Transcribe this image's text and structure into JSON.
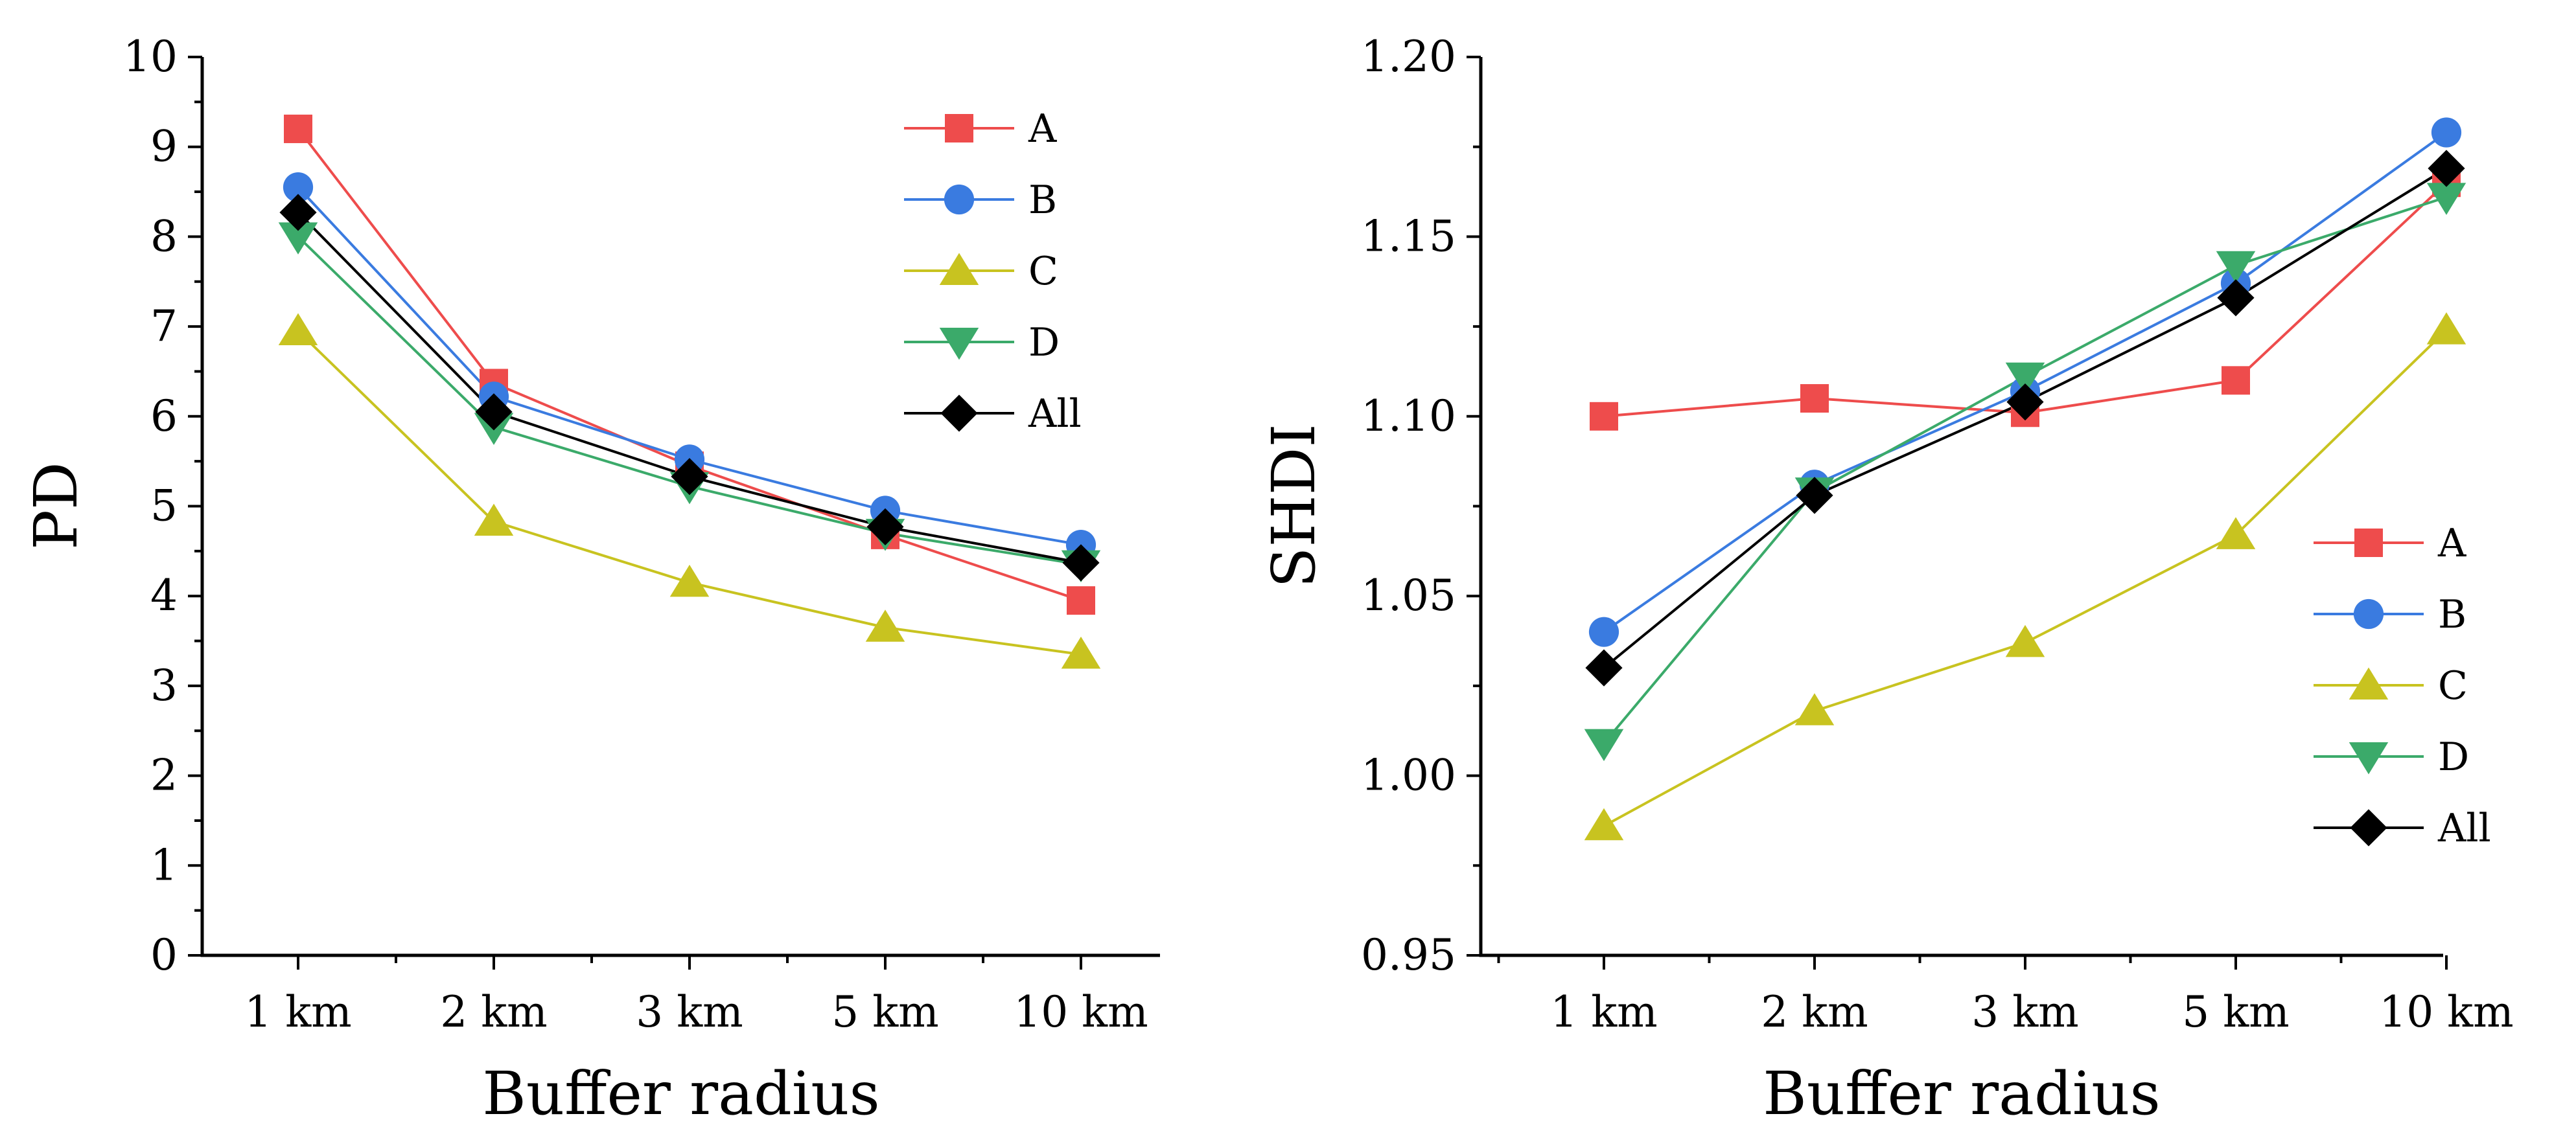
{
  "chart_data": [
    {
      "type": "line",
      "id": "pd",
      "title": "",
      "xlabel": "Buffer radius",
      "ylabel": "PD",
      "categories": [
        "1 km",
        "2 km",
        "3 km",
        "5 km",
        "10 km"
      ],
      "ylim": [
        0,
        10
      ],
      "yticks": [
        0,
        1,
        2,
        3,
        4,
        5,
        6,
        7,
        8,
        9,
        10
      ],
      "ytick_labels": [
        "0",
        "1",
        "2",
        "3",
        "4",
        "5",
        "6",
        "7",
        "8",
        "9",
        "10"
      ],
      "grid": false,
      "legend_position": "top-right",
      "series": [
        {
          "name": "A",
          "color": "#EE4C4C",
          "marker": "square",
          "values": [
            9.2,
            6.37,
            5.45,
            4.68,
            3.95
          ]
        },
        {
          "name": "B",
          "color": "#3A7BE0",
          "marker": "circle",
          "values": [
            8.55,
            6.22,
            5.52,
            4.95,
            4.57
          ]
        },
        {
          "name": "C",
          "color": "#C8C320",
          "marker": "triangle-up",
          "values": [
            6.95,
            4.83,
            4.15,
            3.65,
            3.35
          ]
        },
        {
          "name": "D",
          "color": "#3BAA6A",
          "marker": "triangle-down",
          "values": [
            8.0,
            5.88,
            5.22,
            4.7,
            4.35
          ]
        },
        {
          "name": "All",
          "color": "#000000",
          "marker": "diamond",
          "values": [
            8.27,
            6.05,
            5.33,
            4.77,
            4.37
          ]
        }
      ]
    },
    {
      "type": "line",
      "id": "shdi",
      "title": "",
      "xlabel": "Buffer radius",
      "ylabel": "SHDI",
      "categories": [
        "1 km",
        "2 km",
        "3 km",
        "5 km",
        "10 km"
      ],
      "ylim": [
        0.95,
        1.2
      ],
      "yticks": [
        0.95,
        1.0,
        1.05,
        1.1,
        1.15,
        1.2
      ],
      "ytick_labels": [
        "0.95",
        "1.00",
        "1.05",
        "1.10",
        "1.15",
        "1.20"
      ],
      "grid": false,
      "legend_position": "bottom-right",
      "series": [
        {
          "name": "A",
          "color": "#EE4C4C",
          "marker": "square",
          "values": [
            1.1,
            1.105,
            1.101,
            1.11,
            1.165
          ]
        },
        {
          "name": "B",
          "color": "#3A7BE0",
          "marker": "circle",
          "values": [
            1.04,
            1.081,
            1.107,
            1.137,
            1.179
          ]
        },
        {
          "name": "C",
          "color": "#C8C320",
          "marker": "triangle-up",
          "values": [
            0.986,
            1.018,
            1.037,
            1.067,
            1.124
          ]
        },
        {
          "name": "D",
          "color": "#3BAA6A",
          "marker": "triangle-down",
          "values": [
            1.009,
            1.079,
            1.111,
            1.142,
            1.161
          ]
        },
        {
          "name": "All",
          "color": "#000000",
          "marker": "diamond",
          "values": [
            1.03,
            1.078,
            1.104,
            1.133,
            1.169
          ]
        }
      ]
    }
  ]
}
